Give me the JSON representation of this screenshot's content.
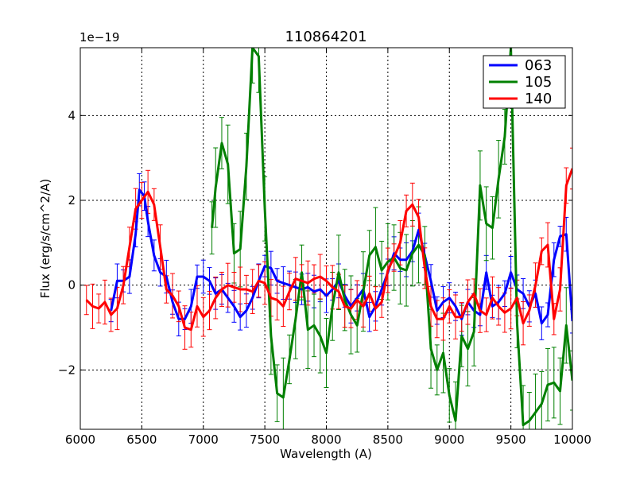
{
  "chart_data": {
    "type": "line",
    "title": "110864201",
    "xlabel": "Wavelength (A)",
    "ylabel": "Flux (erg/s/cm^2/A)",
    "y_scale_label": "1e−19",
    "xlim": [
      6000,
      10000
    ],
    "ylim": [
      -3.4,
      5.6
    ],
    "x_ticks": [
      6000,
      6500,
      7000,
      7500,
      8000,
      8500,
      9000,
      9500,
      10000
    ],
    "x_tick_labels": [
      "6000",
      "6500",
      "7000",
      "7500",
      "8000",
      "8500",
      "9000",
      "9500",
      "10000"
    ],
    "y_ticks": [
      -2,
      0,
      2,
      4
    ],
    "y_tick_labels": [
      "−2",
      "0",
      "2",
      "4"
    ],
    "grid": true,
    "legend_position": "top-right",
    "series": [
      {
        "name": "063",
        "color": "#0000ff",
        "x": [
          6250,
          6300,
          6350,
          6400,
          6450,
          6480,
          6520,
          6550,
          6600,
          6650,
          6700,
          6750,
          6800,
          6850,
          6900,
          6950,
          7000,
          7050,
          7100,
          7150,
          7200,
          7250,
          7300,
          7350,
          7400,
          7450,
          7500,
          7550,
          7600,
          7650,
          7700,
          7750,
          7800,
          7850,
          7900,
          7950,
          8000,
          8050,
          8100,
          8150,
          8200,
          8250,
          8300,
          8350,
          8400,
          8450,
          8500,
          8550,
          8600,
          8650,
          8700,
          8750,
          8800,
          8850,
          8900,
          8950,
          9000,
          9050,
          9100,
          9150,
          9200,
          9250,
          9300,
          9350,
          9400,
          9450,
          9500,
          9550,
          9600,
          9650,
          9700,
          9750,
          9800,
          9850,
          9900,
          9950,
          10000
        ],
        "y": [
          -0.6,
          0.1,
          0.1,
          0.2,
          1.2,
          2.25,
          2.1,
          1.5,
          0.7,
          0.3,
          0.2,
          -0.4,
          -0.8,
          -0.8,
          -0.5,
          0.2,
          0.2,
          0.1,
          -0.2,
          -0.1,
          -0.3,
          -0.5,
          -0.75,
          -0.6,
          -0.3,
          0.1,
          0.45,
          0.4,
          0.1,
          0.05,
          0.0,
          -0.05,
          -0.1,
          -0.05,
          -0.15,
          -0.1,
          -0.25,
          -0.1,
          0.1,
          -0.25,
          -0.5,
          -0.3,
          -0.1,
          -0.75,
          -0.5,
          -0.1,
          0.3,
          0.75,
          0.6,
          0.6,
          0.8,
          1.3,
          0.7,
          0.1,
          -0.6,
          -0.4,
          -0.3,
          -0.5,
          -0.8,
          -0.4,
          -0.6,
          -0.7,
          0.3,
          -0.5,
          -0.4,
          -0.2,
          0.3,
          -0.1,
          -0.2,
          -0.5,
          -0.2,
          -0.9,
          -0.7,
          0.6,
          1.15,
          1.2,
          -0.85
        ]
      },
      {
        "name": "105",
        "color": "#008000",
        "x": [
          7070,
          7100,
          7150,
          7200,
          7250,
          7300,
          7350,
          7400,
          7450,
          7500,
          7550,
          7600,
          7650,
          7700,
          7750,
          7800,
          7850,
          7900,
          7950,
          8000,
          8050,
          8100,
          8150,
          8200,
          8250,
          8300,
          8350,
          8400,
          8450,
          8500,
          8550,
          8600,
          8650,
          8700,
          8750,
          8800,
          8850,
          8900,
          8950,
          9000,
          9050,
          9100,
          9150,
          9200,
          9250,
          9300,
          9350,
          9400,
          9450,
          9500,
          9550,
          9600,
          9650,
          9700,
          9750,
          9800,
          9850,
          9900,
          9950,
          10000
        ],
        "y": [
          1.35,
          2.3,
          3.35,
          2.85,
          0.75,
          0.85,
          2.8,
          5.6,
          5.4,
          1.8,
          -1.2,
          -2.55,
          -2.65,
          -1.75,
          -0.8,
          0.3,
          -1.05,
          -0.95,
          -1.2,
          -1.6,
          -0.5,
          0.3,
          -0.35,
          -0.7,
          -0.95,
          -0.15,
          0.7,
          0.9,
          0.35,
          0.55,
          0.65,
          0.4,
          0.35,
          0.75,
          0.95,
          0.7,
          -1.5,
          -2.0,
          -1.6,
          -2.6,
          -3.2,
          -1.2,
          -1.5,
          -1.1,
          2.35,
          1.45,
          1.35,
          2.5,
          3.5,
          5.6,
          -0.9,
          -3.3,
          -3.2,
          -3.0,
          -2.8,
          -2.35,
          -2.3,
          -2.5,
          -0.95,
          -2.25
        ]
      },
      {
        "name": "140",
        "color": "#ff0000",
        "x": [
          6050,
          6100,
          6150,
          6200,
          6250,
          6300,
          6350,
          6400,
          6450,
          6500,
          6550,
          6600,
          6650,
          6700,
          6750,
          6800,
          6850,
          6900,
          6950,
          7000,
          7050,
          7100,
          7150,
          7200,
          7250,
          7300,
          7350,
          7400,
          7450,
          7500,
          7550,
          7600,
          7650,
          7700,
          7750,
          7800,
          7850,
          7900,
          7950,
          8000,
          8050,
          8100,
          8150,
          8200,
          8250,
          8300,
          8350,
          8400,
          8450,
          8500,
          8550,
          8600,
          8650,
          8700,
          8750,
          8800,
          8850,
          8900,
          8950,
          9000,
          9050,
          9100,
          9150,
          9200,
          9250,
          9300,
          9350,
          9400,
          9450,
          9500,
          9550,
          9600,
          9650,
          9700,
          9750,
          9800,
          9850,
          9900,
          9950,
          10000
        ],
        "y": [
          -0.35,
          -0.5,
          -0.55,
          -0.4,
          -0.7,
          -0.55,
          0.0,
          0.9,
          1.8,
          2.0,
          2.2,
          1.9,
          0.9,
          -0.1,
          -0.25,
          -0.5,
          -1.0,
          -1.05,
          -0.5,
          -0.75,
          -0.6,
          -0.3,
          -0.1,
          0.0,
          -0.05,
          -0.1,
          -0.1,
          -0.15,
          0.1,
          0.05,
          -0.3,
          -0.35,
          -0.5,
          -0.15,
          0.15,
          0.1,
          0.05,
          0.15,
          0.2,
          0.1,
          -0.05,
          -0.15,
          -0.5,
          -0.55,
          -0.35,
          -0.5,
          -0.2,
          -0.55,
          -0.4,
          0.35,
          0.65,
          1.0,
          1.75,
          1.9,
          1.6,
          0.4,
          -0.5,
          -0.8,
          -0.8,
          -0.5,
          -0.75,
          -0.75,
          -0.4,
          -0.2,
          -0.6,
          -0.7,
          -0.3,
          -0.5,
          -0.65,
          -0.55,
          -0.3,
          -0.9,
          -0.6,
          0.0,
          0.8,
          0.95,
          -0.8,
          -0.1,
          2.35,
          2.75
        ]
      }
    ]
  }
}
